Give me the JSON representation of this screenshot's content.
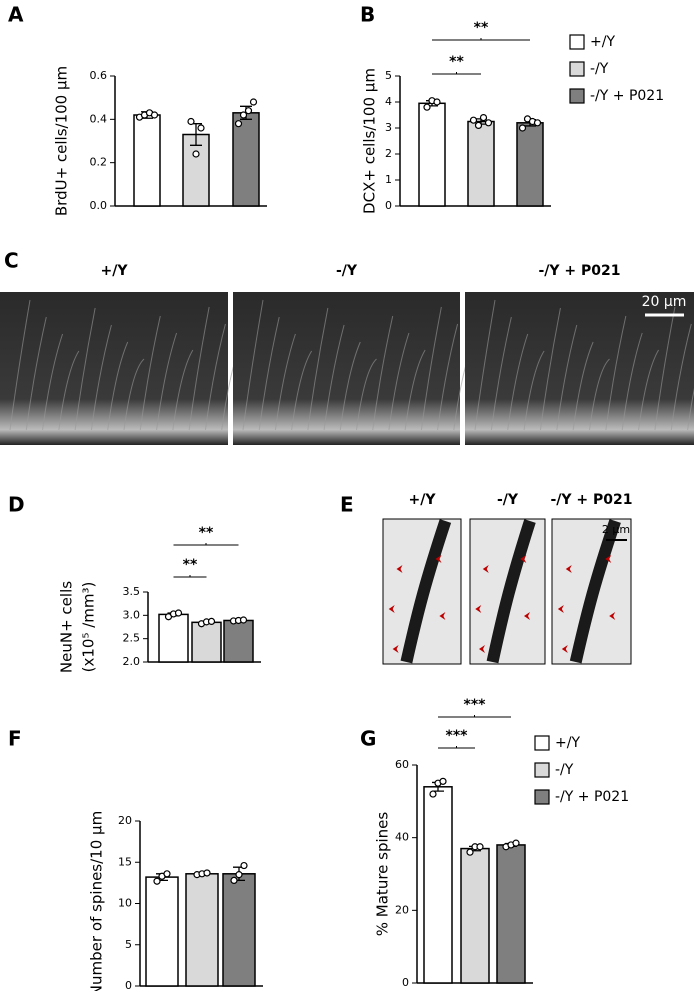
{
  "chart_data": [
    {
      "type": "bar",
      "panel": "A",
      "ylabel": "BrdU+ cells/100 µm",
      "ylim": [
        0,
        0.6
      ],
      "yticks": [
        {
          "value": 0,
          "label": "0.0"
        },
        0.2,
        0.4,
        0.6
      ],
      "series": [
        {
          "color": "#ffffff",
          "values": [
            0.42
          ],
          "errors": [
            0.015
          ],
          "points": [
            0.41,
            0.42,
            0.43,
            0.42
          ]
        },
        {
          "color": "#d9d9d9",
          "values": [
            0.33
          ],
          "errors": [
            0.05
          ],
          "points": [
            0.39,
            0.24,
            0.36
          ]
        },
        {
          "color": "#7f7f7f",
          "values": [
            0.43
          ],
          "errors": [
            0.03
          ],
          "points": [
            0.38,
            0.42,
            0.44,
            0.48
          ]
        }
      ]
    },
    {
      "type": "bar",
      "panel": "B",
      "ylabel": "DCX+ cells/100 µm",
      "ylim": [
        0,
        5
      ],
      "yticks": [
        0,
        1,
        2,
        3,
        4,
        5
      ],
      "legend": true,
      "comparisons": [
        "**",
        "**"
      ],
      "series": [
        {
          "name": "+/Y",
          "color": "#ffffff",
          "values": [
            3.95
          ],
          "errors": [
            0.1
          ],
          "points": [
            3.8,
            4.05,
            4.0
          ]
        },
        {
          "name": "-/Y",
          "color": "#d9d9d9",
          "values": [
            3.25
          ],
          "errors": [
            0.1
          ],
          "points": [
            3.3,
            3.1,
            3.4,
            3.2
          ]
        },
        {
          "name": "-/Y + P021",
          "color": "#7f7f7f",
          "values": [
            3.2
          ],
          "errors": [
            0.12
          ],
          "points": [
            3.0,
            3.35,
            3.25,
            3.2
          ]
        }
      ]
    },
    {
      "type": "bar",
      "panel": "D",
      "ylabel": [
        "NeuN+ cells",
        "(x10⁵ /mm³)"
      ],
      "ylim": [
        2,
        3.5
      ],
      "yticks": [
        {
          "value": 2,
          "label": "2.0"
        },
        2.5,
        {
          "value": 3,
          "label": "3.0"
        },
        3.5
      ],
      "comparisons": [
        "**",
        "**"
      ],
      "series": [
        {
          "color": "#ffffff",
          "values": [
            3.02
          ],
          "errors": [
            0.03
          ],
          "points": [
            2.97,
            3.03,
            3.05
          ]
        },
        {
          "color": "#d9d9d9",
          "values": [
            2.85
          ],
          "errors": [
            0.02
          ],
          "points": [
            2.82,
            2.86,
            2.87
          ]
        },
        {
          "color": "#7f7f7f",
          "values": [
            2.89
          ],
          "errors": [
            0.01
          ],
          "points": [
            2.88,
            2.89,
            2.9
          ]
        }
      ]
    },
    {
      "type": "bar",
      "panel": "F",
      "ylabel": "Number of spines/10 µm",
      "ylim": [
        0,
        20
      ],
      "yticks": [
        0,
        5,
        10,
        15,
        20
      ],
      "series": [
        {
          "color": "#ffffff",
          "values": [
            13.2
          ],
          "errors": [
            0.4
          ],
          "points": [
            12.7,
            13.3,
            13.6
          ]
        },
        {
          "color": "#d9d9d9",
          "values": [
            13.6
          ],
          "errors": [
            0.15
          ],
          "points": [
            13.5,
            13.6,
            13.7
          ]
        },
        {
          "color": "#7f7f7f",
          "values": [
            13.6
          ],
          "errors": [
            0.8
          ],
          "points": [
            12.8,
            13.5,
            14.6
          ]
        }
      ]
    },
    {
      "type": "bar",
      "panel": "G",
      "ylabel": "% Mature spines",
      "ylim": [
        0,
        60
      ],
      "yticks": [
        0,
        20,
        40,
        60
      ],
      "legend": true,
      "comparisons": [
        "***",
        "***"
      ],
      "series": [
        {
          "name": "+/Y",
          "color": "#ffffff",
          "values": [
            54
          ],
          "errors": [
            1.2
          ],
          "points": [
            52,
            55,
            55.5
          ]
        },
        {
          "name": "-/Y",
          "color": "#d9d9d9",
          "values": [
            37
          ],
          "errors": [
            0.6
          ],
          "points": [
            36,
            37.5,
            37.5
          ]
        },
        {
          "name": "-/Y + P021",
          "color": "#7f7f7f",
          "values": [
            38
          ],
          "errors": [
            0.4
          ],
          "points": [
            37.5,
            38,
            38.5
          ]
        }
      ]
    }
  ],
  "micrographs": [
    {
      "panel": "C",
      "labels": [
        "+/Y",
        "-/Y",
        "-/Y + P021"
      ],
      "scale_bar": "20 µm"
    },
    {
      "panel": "E",
      "labels": [
        "+/Y",
        "-/Y",
        "-/Y + P021"
      ],
      "scale_bar": "2 µm"
    }
  ]
}
